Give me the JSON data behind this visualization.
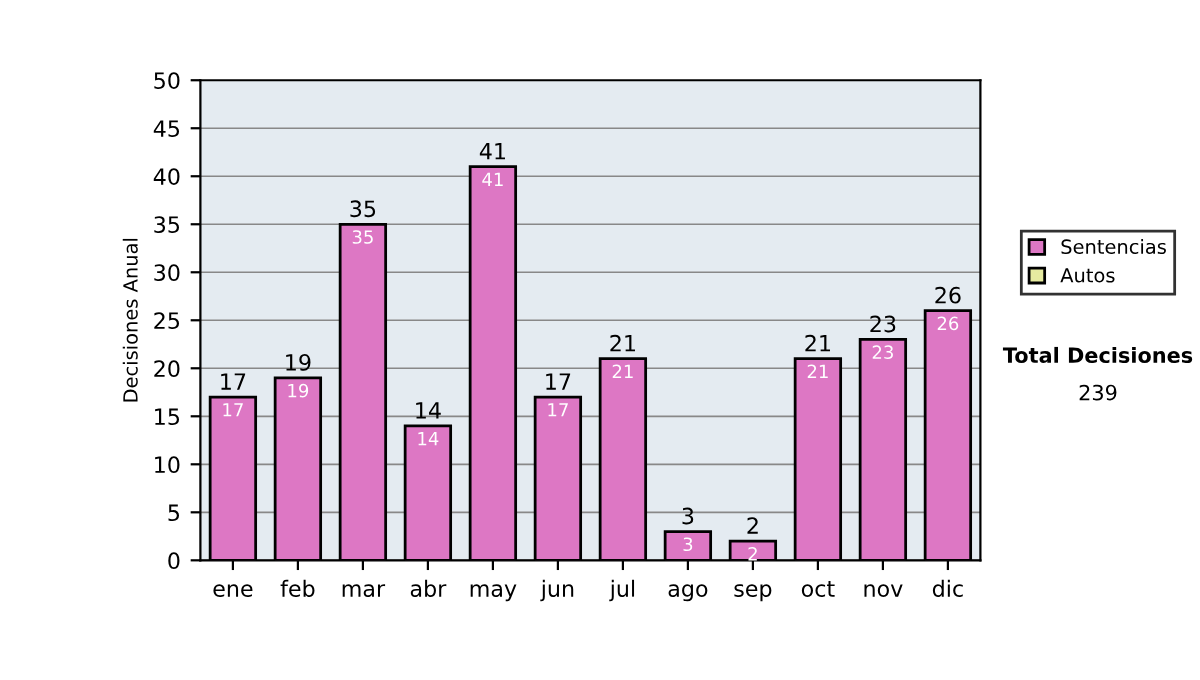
{
  "chart_data": {
    "type": "bar",
    "ylabel": "Decisiones Anual",
    "categories": [
      "ene",
      "feb",
      "mar",
      "abr",
      "may",
      "jun",
      "jul",
      "ago",
      "sep",
      "oct",
      "nov",
      "dic"
    ],
    "series": [
      {
        "name": "Sentencias",
        "color": "#dd77c4",
        "values": [
          17,
          19,
          35,
          14,
          41,
          17,
          21,
          3,
          2,
          21,
          23,
          26
        ]
      },
      {
        "name": "Autos",
        "color": "#e6eba0",
        "values": [
          null,
          null,
          null,
          null,
          null,
          null,
          null,
          null,
          null,
          null,
          null,
          null
        ]
      }
    ],
    "ylim": [
      0,
      50
    ],
    "yticks": [
      0,
      5,
      10,
      15,
      20,
      25,
      30,
      35,
      40,
      45,
      50
    ],
    "grid": "y",
    "legend": "right",
    "data_labels": true,
    "annotations": [
      "Total Decisiones",
      "239",
      {
        "text": "17",
        "x": "ene",
        "y": 17
      },
      {
        "text": "19",
        "x": "feb",
        "y": 19
      },
      {
        "text": "35",
        "x": "mar",
        "y": 35
      },
      {
        "text": "14",
        "x": "abr",
        "y": 14
      },
      {
        "text": "41",
        "x": "may",
        "y": 41
      },
      {
        "text": "17",
        "x": "jun",
        "y": 17
      },
      {
        "text": "21",
        "x": "jul",
        "y": 21
      },
      {
        "text": "3",
        "x": "ago",
        "y": 3
      },
      {
        "text": "2",
        "x": "sep",
        "y": 2
      },
      {
        "text": "21",
        "x": "oct",
        "y": 21
      },
      {
        "text": "23",
        "x": "nov",
        "y": 23
      },
      {
        "text": "26",
        "x": "dic",
        "y": 26
      }
    ]
  }
}
